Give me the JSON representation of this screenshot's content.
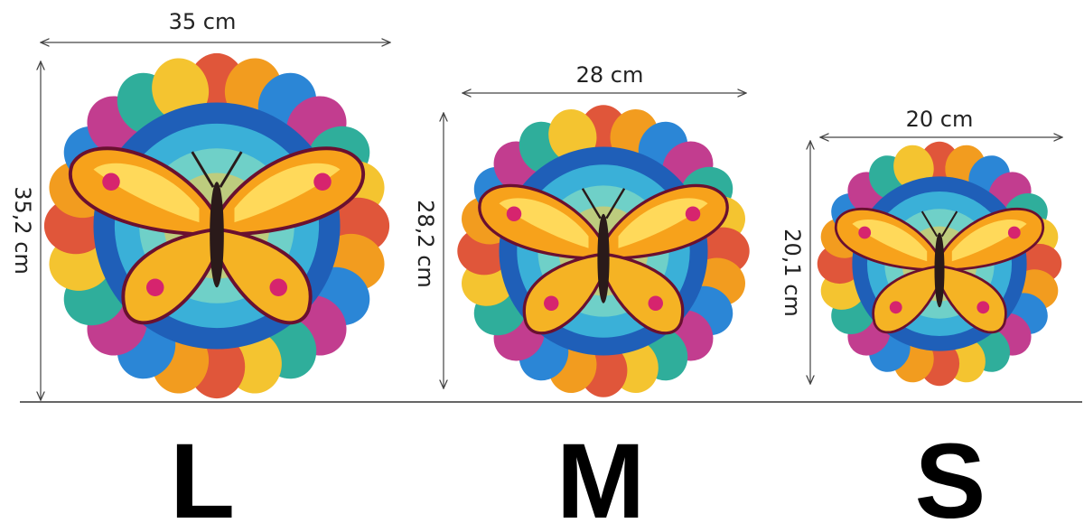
{
  "sizes": [
    {
      "label": "L",
      "width": "35 cm",
      "height": "35,2 cm"
    },
    {
      "label": "M",
      "width": "28 cm",
      "height": "28,2 cm"
    },
    {
      "label": "S",
      "width": "20 cm",
      "height": "20,1 cm"
    }
  ]
}
